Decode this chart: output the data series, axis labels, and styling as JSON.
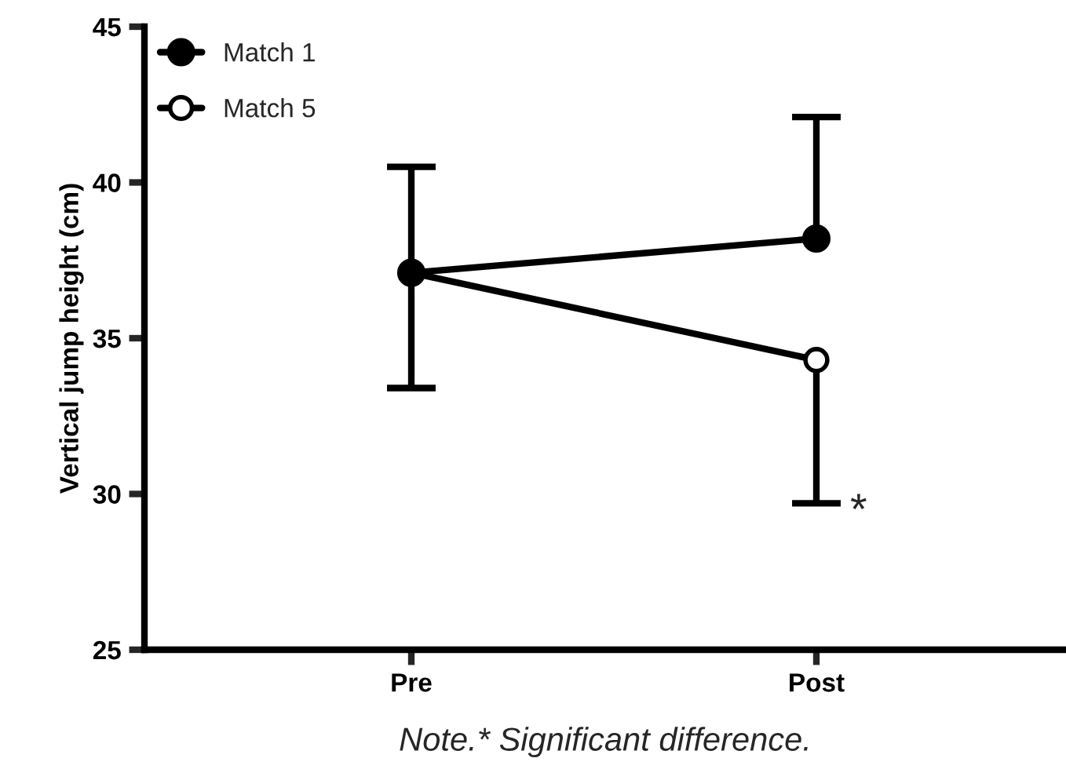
{
  "chart_data": {
    "type": "line",
    "ylabel": "Vertical jump height (cm)",
    "categories": [
      "Pre",
      "Post"
    ],
    "series": [
      {
        "name": "Match 1",
        "color": "#000000",
        "marker": "circle",
        "values": [
          37.1,
          38.2
        ],
        "errors": [
          [
            37.1,
            40.5
          ],
          [
            38.2,
            42.1
          ]
        ]
      },
      {
        "name": "Match 5",
        "color": "#000000",
        "marker": "open circle",
        "values": [
          37.1,
          34.3
        ],
        "errors": [
          [
            33.4,
            37.1
          ],
          [
            29.7,
            34.3
          ]
        ]
      }
    ],
    "ylim": [
      25,
      45
    ],
    "yticks": [
      25,
      30,
      35,
      40,
      45
    ],
    "grid": false,
    "legend": "top left",
    "line_style": "solid",
    "annotations": [
      "*",
      "Note.* Significant difference."
    ]
  }
}
